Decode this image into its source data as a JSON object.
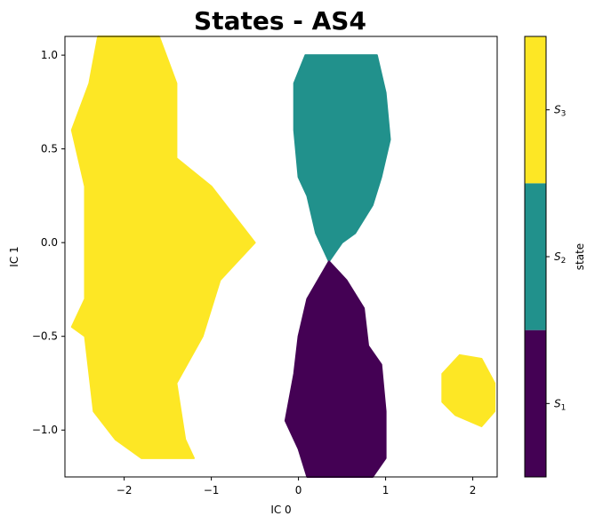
{
  "chart_data": {
    "type": "heatmap",
    "title": "States - AS4",
    "xlabel": "IC 0",
    "ylabel": "IC 1",
    "xlim": [
      -2.68,
      2.28
    ],
    "ylim": [
      -1.25,
      1.1
    ],
    "xticks": [
      -2,
      -1,
      0,
      1,
      2
    ],
    "xtick_labels": [
      "−2",
      "−1",
      "0",
      "1",
      "2"
    ],
    "yticks": [
      -1.0,
      -0.5,
      0.0,
      0.5,
      1.0
    ],
    "ytick_labels": [
      "−1.0",
      "−0.5",
      "0.0",
      "0.5",
      "1.0"
    ],
    "grid": false,
    "colorbar": {
      "label": "state",
      "colors": [
        "#440154",
        "#21918c",
        "#fde725"
      ],
      "tick_labels": [
        "S1",
        "S2",
        "S3"
      ]
    },
    "regions": [
      {
        "state": "S3",
        "color": "#fde725",
        "polygon": [
          [
            -2.3,
            1.1
          ],
          [
            -1.6,
            1.1
          ],
          [
            -1.4,
            0.85
          ],
          [
            -1.4,
            0.45
          ],
          [
            -1.0,
            0.3
          ],
          [
            -0.5,
            0.0
          ],
          [
            -0.9,
            -0.2
          ],
          [
            -1.1,
            -0.5
          ],
          [
            -1.4,
            -0.75
          ],
          [
            -1.3,
            -1.05
          ],
          [
            -1.2,
            -1.15
          ],
          [
            -1.8,
            -1.15
          ],
          [
            -2.1,
            -1.05
          ],
          [
            -2.35,
            -0.9
          ],
          [
            -2.45,
            -0.5
          ],
          [
            -2.6,
            -0.45
          ],
          [
            -2.45,
            -0.3
          ],
          [
            -2.45,
            0.3
          ],
          [
            -2.6,
            0.6
          ],
          [
            -2.4,
            0.85
          ]
        ]
      },
      {
        "state": "S3",
        "color": "#fde725",
        "polygon": [
          [
            1.85,
            -0.6
          ],
          [
            2.1,
            -0.62
          ],
          [
            2.25,
            -0.75
          ],
          [
            2.25,
            -0.9
          ],
          [
            2.1,
            -0.98
          ],
          [
            1.8,
            -0.92
          ],
          [
            1.65,
            -0.85
          ],
          [
            1.65,
            -0.7
          ]
        ]
      },
      {
        "state": "S2",
        "color": "#21918c",
        "polygon": [
          [
            0.08,
            1.0
          ],
          [
            0.9,
            1.0
          ],
          [
            1.0,
            0.8
          ],
          [
            1.05,
            0.55
          ],
          [
            0.95,
            0.35
          ],
          [
            0.85,
            0.2
          ],
          [
            0.65,
            0.05
          ],
          [
            0.5,
            0.0
          ],
          [
            0.35,
            -0.1
          ],
          [
            0.2,
            0.05
          ],
          [
            0.1,
            0.25
          ],
          [
            0.0,
            0.35
          ],
          [
            -0.05,
            0.6
          ],
          [
            -0.05,
            0.85
          ]
        ]
      },
      {
        "state": "S1",
        "color": "#440154",
        "polygon": [
          [
            0.35,
            -0.1
          ],
          [
            0.55,
            -0.2
          ],
          [
            0.75,
            -0.35
          ],
          [
            0.8,
            -0.55
          ],
          [
            0.95,
            -0.65
          ],
          [
            1.0,
            -0.9
          ],
          [
            1.0,
            -1.15
          ],
          [
            0.85,
            -1.25
          ],
          [
            0.1,
            -1.25
          ],
          [
            0.0,
            -1.1
          ],
          [
            -0.15,
            -0.95
          ],
          [
            -0.05,
            -0.7
          ],
          [
            0.0,
            -0.5
          ],
          [
            0.1,
            -0.3
          ]
        ]
      }
    ]
  }
}
